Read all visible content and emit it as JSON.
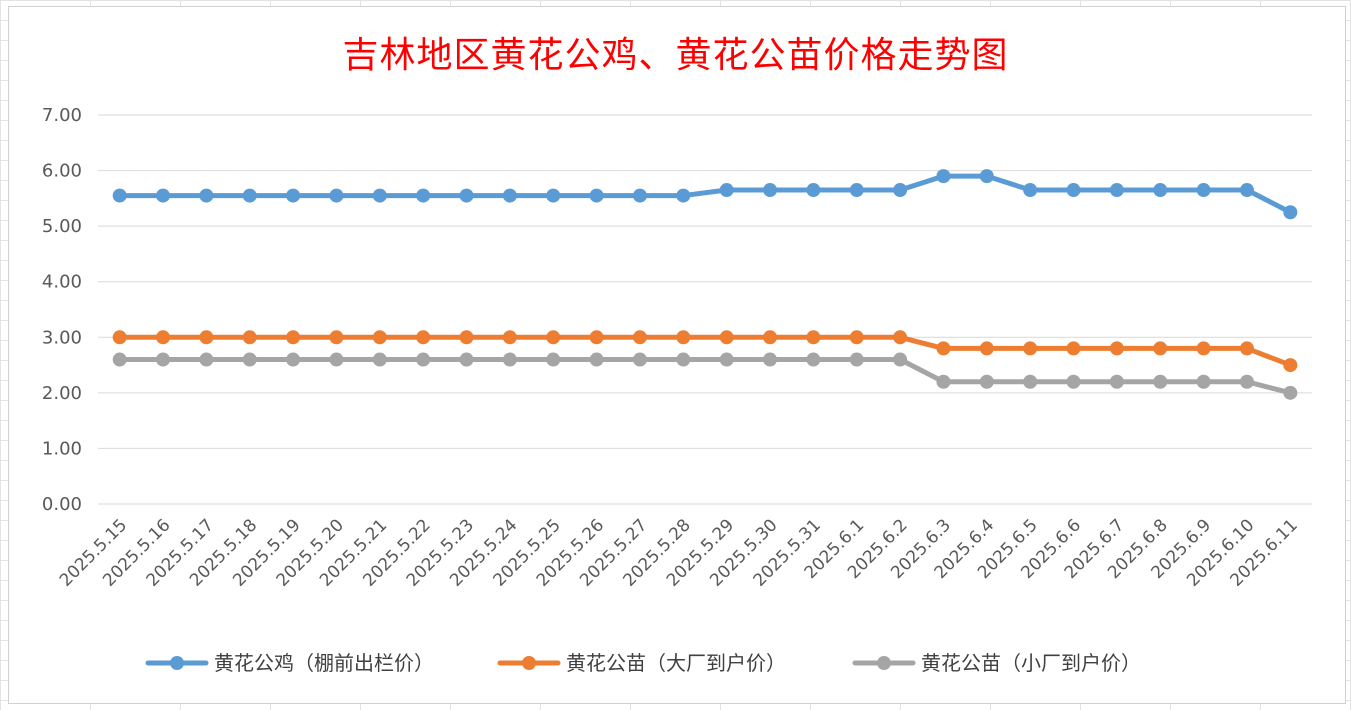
{
  "chart_data": {
    "type": "line",
    "title": "吉林地区黄花公鸡、黄花公苗价格走势图",
    "ylim": [
      0,
      7
    ],
    "yticks": [
      "0.00",
      "1.00",
      "2.00",
      "3.00",
      "4.00",
      "5.00",
      "6.00",
      "7.00"
    ],
    "grid": true,
    "legend_position": "bottom",
    "categories": [
      "2025.5.15",
      "2025.5.16",
      "2025.5.17",
      "2025.5.18",
      "2025.5.19",
      "2025.5.20",
      "2025.5.21",
      "2025.5.22",
      "2025.5.23",
      "2025.5.24",
      "2025.5.25",
      "2025.5.26",
      "2025.5.27",
      "2025.5.28",
      "2025.5.29",
      "2025.5.30",
      "2025.5.31",
      "2025.6.1",
      "2025.6.2",
      "2025.6.3",
      "2025.6.4",
      "2025.6.5",
      "2025.6.6",
      "2025.6.7",
      "2025.6.8",
      "2025.6.9",
      "2025.6.10",
      "2025.6.11"
    ],
    "series": [
      {
        "name": "黄花公鸡（棚前出栏价）",
        "color": "#5b9bd5",
        "values": [
          5.55,
          5.55,
          5.55,
          5.55,
          5.55,
          5.55,
          5.55,
          5.55,
          5.55,
          5.55,
          5.55,
          5.55,
          5.55,
          5.55,
          5.65,
          5.65,
          5.65,
          5.65,
          5.65,
          5.9,
          5.9,
          5.65,
          5.65,
          5.65,
          5.65,
          5.65,
          5.65,
          5.25
        ]
      },
      {
        "name": "黄花公苗（大厂到户价）",
        "color": "#ed7d31",
        "values": [
          3.0,
          3.0,
          3.0,
          3.0,
          3.0,
          3.0,
          3.0,
          3.0,
          3.0,
          3.0,
          3.0,
          3.0,
          3.0,
          3.0,
          3.0,
          3.0,
          3.0,
          3.0,
          3.0,
          2.8,
          2.8,
          2.8,
          2.8,
          2.8,
          2.8,
          2.8,
          2.8,
          2.5
        ]
      },
      {
        "name": "黄花公苗（小厂到户价）",
        "color": "#a5a5a5",
        "values": [
          2.6,
          2.6,
          2.6,
          2.6,
          2.6,
          2.6,
          2.6,
          2.6,
          2.6,
          2.6,
          2.6,
          2.6,
          2.6,
          2.6,
          2.6,
          2.6,
          2.6,
          2.6,
          2.6,
          2.2,
          2.2,
          2.2,
          2.2,
          2.2,
          2.2,
          2.2,
          2.2,
          2.0
        ]
      }
    ]
  }
}
